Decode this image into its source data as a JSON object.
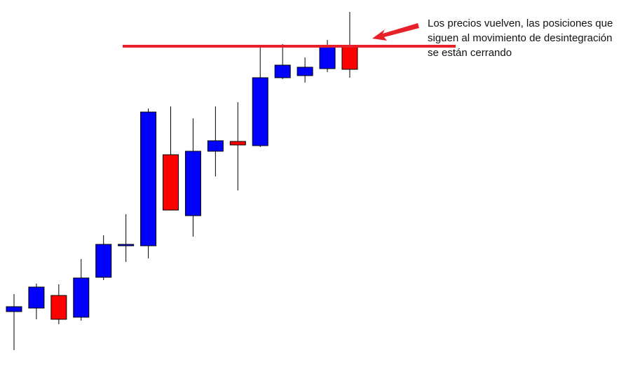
{
  "chart_data": {
    "type": "candlestick",
    "open": [
      82,
      87,
      105,
      74,
      131,
      176,
      176,
      306,
      219,
      311,
      325,
      319,
      416,
      419,
      429,
      461
    ],
    "high": [
      107,
      122,
      121,
      157,
      191,
      221,
      372,
      375,
      358,
      375,
      381,
      460,
      464,
      445,
      470,
      510
    ],
    "low": [
      27,
      71,
      64,
      69,
      127,
      153,
      158,
      227,
      189,
      275,
      255,
      317,
      414,
      409,
      424,
      416
    ],
    "close": [
      89,
      117,
      71,
      130,
      178,
      178,
      367,
      227,
      311,
      326,
      320,
      416,
      434,
      431,
      461,
      428
    ],
    "up_color": "#0000ff",
    "down_color": "#ff0000",
    "flat_color": "#000000",
    "ylim": [
      0,
      527
    ],
    "level": {
      "value": 461,
      "color": "#e8202a"
    },
    "annotation": [
      "Los precios vuelven, las posiciones que",
      "siguen al movimiento de desintegración",
      "se están cerrando"
    ]
  }
}
